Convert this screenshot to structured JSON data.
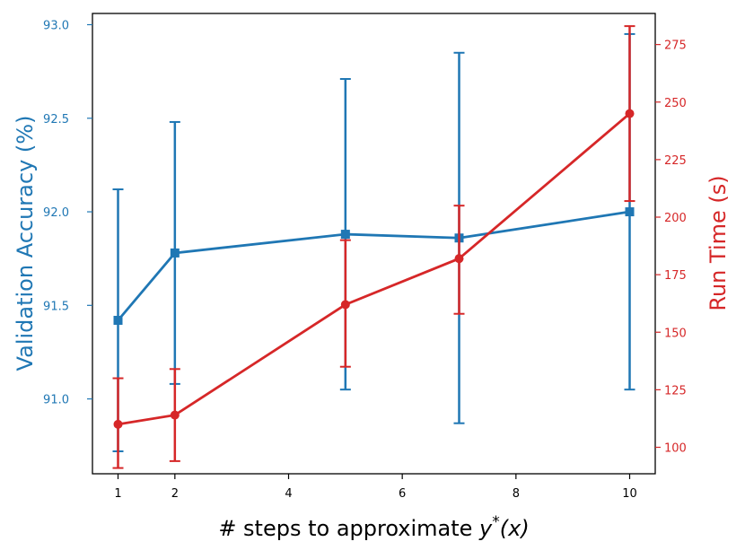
{
  "chart_data": {
    "type": "line",
    "xlabel": "# steps to approximate y*(x)",
    "xlabel_parts": {
      "prefix": "# steps to approximate ",
      "var": "y",
      "sup": "*",
      "suffix": "(x)"
    },
    "ylabel_left": "Validation Accuracy (%)",
    "ylabel_right": "Run Time (s)",
    "x_ticks": [
      "1",
      "2",
      "4",
      "6",
      "8",
      "10"
    ],
    "y_left_ticks": [
      "91.0",
      "91.5",
      "92.0",
      "92.5",
      "93.0"
    ],
    "y_right_ticks": [
      "100",
      "125",
      "150",
      "175",
      "200",
      "225",
      "250",
      "275"
    ],
    "xlim": [
      0.55,
      10.45
    ],
    "ylim_left": [
      90.6,
      93.06
    ],
    "ylim_right": [
      88.5,
      288.5
    ],
    "grid": false,
    "legend": "none",
    "series": [
      {
        "axis": "left",
        "marker": "square",
        "color": "#1f77b4",
        "x": [
          1,
          2,
          5,
          7,
          10
        ],
        "values": [
          91.42,
          91.78,
          91.88,
          91.86,
          92.0
        ],
        "err_low": [
          90.72,
          91.08,
          91.05,
          90.87,
          91.05
        ],
        "err_high": [
          92.12,
          92.48,
          92.71,
          92.85,
          92.95
        ]
      },
      {
        "axis": "right",
        "marker": "circle",
        "color": "#d62728",
        "x": [
          1,
          2,
          5,
          7,
          10
        ],
        "values": [
          110,
          114,
          162,
          182,
          245
        ],
        "err_low": [
          91,
          94,
          135,
          158,
          207
        ],
        "err_high": [
          130,
          134,
          190,
          205,
          283
        ]
      }
    ]
  }
}
